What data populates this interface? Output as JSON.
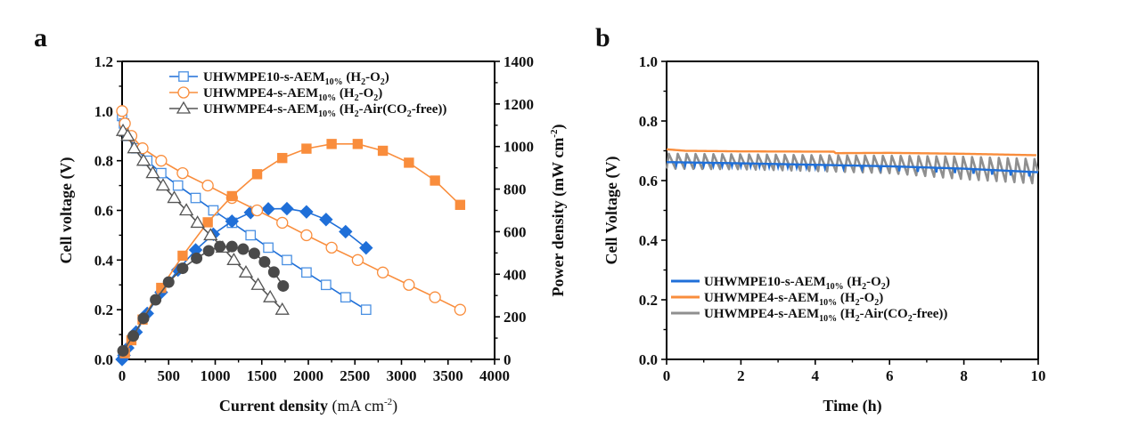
{
  "colors": {
    "blue": "#1f6fd8",
    "blue_open": "#4a90e2",
    "orange": "#f98d3c",
    "gray": "#555555",
    "gray_dark": "#4a4a4a",
    "gray_line": "#8f8f8f",
    "axis": "#000000"
  },
  "chart_data": [
    {
      "panel": "a",
      "type": "line",
      "xlabel": "Current density (mA cm-2)",
      "xlabel_main": "Current density",
      "xlabel_unit": "(mA cm",
      "xlabel_sup": "-2",
      "xlabel_close": ")",
      "ylabel": "Cell voltage (V)",
      "y2label": "Power density (mW cm-2)",
      "y2label_main": "Power density (mW cm",
      "y2label_sup": "-2",
      "y2label_close": ")",
      "xlim": [
        0,
        4000
      ],
      "ylim": [
        0.0,
        1.2
      ],
      "y2lim": [
        0,
        1400
      ],
      "xticks": [
        0,
        500,
        1000,
        1500,
        2000,
        2500,
        3000,
        3500,
        4000
      ],
      "yticks": [
        "0.0",
        "0.2",
        "0.4",
        "0.6",
        "0.8",
        "1.0",
        "1.2"
      ],
      "y2ticks": [
        0,
        200,
        400,
        600,
        800,
        1000,
        1200,
        1400
      ],
      "legend_position": "top-left",
      "legend": [
        {
          "main": "UHWMPE10-s-AEM",
          "sub": "10%",
          "tail": " (H",
          "tail_sub": "2",
          "tail2": "-O",
          "tail2_sub": "2",
          "tail3": ")",
          "marker": "open-square",
          "color_key": "blue_open"
        },
        {
          "main": "UHWMPE4-s-AEM",
          "sub": "10%",
          "tail": " (H",
          "tail_sub": "2",
          "tail2": "-O",
          "tail2_sub": "2",
          "tail3": ")",
          "marker": "open-circle",
          "color_key": "orange"
        },
        {
          "main": "UHWMPE4-s-AEM",
          "sub": "10%",
          "tail": " (H",
          "tail_sub": "2",
          "tail2": "-Air(CO",
          "tail2_sub": "2",
          "tail3": "-free))",
          "marker": "open-triangle",
          "color_key": "gray"
        }
      ],
      "series": [
        {
          "name": "UHWMPE10-s-AEM10% (H2-O2) voltage",
          "axis": "left",
          "marker": "open-square",
          "color_key": "blue_open",
          "line_color_key": "blue",
          "x": [
            0,
            20,
            60,
            150,
            270,
            420,
            600,
            790,
            980,
            1180,
            1380,
            1570,
            1770,
            1980,
            2190,
            2400,
            2620
          ],
          "y": [
            0.98,
            0.95,
            0.9,
            0.85,
            0.8,
            0.75,
            0.7,
            0.65,
            0.6,
            0.55,
            0.5,
            0.45,
            0.4,
            0.35,
            0.3,
            0.25,
            0.2
          ]
        },
        {
          "name": "UHWMPE10-s-AEM10% (H2-O2) power",
          "axis": "right",
          "marker": "filled-diamond",
          "color_key": "blue",
          "line_color_key": "blue",
          "x": [
            0,
            20,
            60,
            150,
            270,
            420,
            600,
            790,
            980,
            1180,
            1380,
            1570,
            1770,
            1980,
            2190,
            2400,
            2620
          ],
          "y": [
            0,
            19,
            54,
            128,
            216,
            315,
            420,
            514,
            588,
            649,
            690,
            707,
            708,
            693,
            657,
            600,
            524
          ]
        },
        {
          "name": "UHWMPE4-s-AEM10% (H2-O2) voltage",
          "axis": "left",
          "marker": "open-circle",
          "color_key": "orange",
          "line_color_key": "orange",
          "x": [
            0,
            30,
            100,
            220,
            420,
            650,
            920,
            1180,
            1450,
            1720,
            1980,
            2250,
            2530,
            2800,
            3080,
            3360,
            3630
          ],
          "y": [
            1.0,
            0.95,
            0.9,
            0.85,
            0.8,
            0.75,
            0.7,
            0.65,
            0.6,
            0.55,
            0.5,
            0.45,
            0.4,
            0.35,
            0.3,
            0.25,
            0.2
          ]
        },
        {
          "name": "UHWMPE4-s-AEM10% (H2-O2) power",
          "axis": "right",
          "marker": "filled-square",
          "color_key": "orange",
          "line_color_key": "orange",
          "x": [
            30,
            100,
            220,
            420,
            650,
            920,
            1180,
            1450,
            1720,
            1980,
            2250,
            2530,
            2800,
            3080,
            3360,
            3630
          ],
          "y": [
            29,
            90,
            187,
            336,
            487,
            644,
            767,
            870,
            946,
            990,
            1012,
            1012,
            980,
            924,
            840,
            726
          ]
        },
        {
          "name": "UHWMPE4-s-AEM10% (H2-Air(CO2-free)) voltage",
          "axis": "left",
          "marker": "open-triangle",
          "color_key": "gray",
          "line_color_key": "gray",
          "x": [
            10,
            60,
            130,
            230,
            330,
            440,
            560,
            690,
            810,
            950,
            1080,
            1200,
            1330,
            1460,
            1590,
            1720
          ],
          "y": [
            0.92,
            0.9,
            0.85,
            0.8,
            0.75,
            0.7,
            0.65,
            0.6,
            0.55,
            0.5,
            0.45,
            0.4,
            0.35,
            0.3,
            0.25,
            0.2
          ]
        },
        {
          "name": "UHWMPE4-s-AEM10% (H2-Air(CO2-free)) power",
          "axis": "right",
          "marker": "filled-circle",
          "color_key": "gray_dark",
          "line_color_key": "gray",
          "x": [
            10,
            120,
            230,
            360,
            500,
            650,
            800,
            930,
            1050,
            1180,
            1300,
            1420,
            1530,
            1630,
            1730
          ],
          "y": [
            40,
            110,
            193,
            280,
            363,
            428,
            475,
            510,
            530,
            530,
            518,
            498,
            458,
            410,
            345
          ]
        }
      ]
    },
    {
      "panel": "b",
      "type": "line",
      "xlabel": "Time (h)",
      "ylabel": "Cell Voltage (V)",
      "xlim": [
        0,
        10
      ],
      "ylim": [
        0.0,
        1.0
      ],
      "xticks": [
        0,
        2,
        4,
        6,
        8,
        10
      ],
      "yticks": [
        "0.0",
        "0.2",
        "0.4",
        "0.6",
        "0.8",
        "1.0"
      ],
      "legend_position": "lower-left",
      "legend": [
        {
          "main": "UHWMPE10-s-AEM",
          "sub": "10%",
          "tail": " (H",
          "tail_sub": "2",
          "tail2": "-O",
          "tail2_sub": "2",
          "tail3": ")",
          "color_key": "blue"
        },
        {
          "main": "UHWMPE4-s-AEM",
          "sub": "10%",
          "tail": " (H",
          "tail_sub": "2",
          "tail2": "-O",
          "tail2_sub": "2",
          "tail3": ")",
          "color_key": "orange"
        },
        {
          "main": "UHWMPE4-s-AEM",
          "sub": "10%",
          "tail": " (H",
          "tail_sub": "2",
          "tail2": "-Air(CO",
          "tail2_sub": "2",
          "tail3": "-free))",
          "color_key": "gray_line"
        }
      ],
      "series": [
        {
          "name": "UHWMPE10-s-AEM10% (H2-O2)",
          "color_key": "blue",
          "style": "steady",
          "x": [
            0,
            2,
            4,
            6,
            8,
            10
          ],
          "y": [
            0.662,
            0.658,
            0.653,
            0.648,
            0.64,
            0.628
          ],
          "dip_period_h": 0.25,
          "dip_depth": 0.012
        },
        {
          "name": "UHWMPE4-s-AEM10% (H2-O2)",
          "color_key": "orange",
          "style": "steady",
          "x": [
            0,
            0.5,
            2,
            4.5,
            4.55,
            6,
            8,
            10
          ],
          "y": [
            0.705,
            0.7,
            0.698,
            0.697,
            0.692,
            0.693,
            0.69,
            0.685
          ]
        },
        {
          "name": "UHWMPE4-s-AEM10% (H2-Air(CO2-free))",
          "color_key": "gray_line",
          "style": "oscillating",
          "x": [
            0,
            2,
            4,
            6,
            8,
            10
          ],
          "y_high": [
            0.69,
            0.688,
            0.685,
            0.683,
            0.68,
            0.672
          ],
          "y_low": [
            0.64,
            0.638,
            0.632,
            0.625,
            0.605,
            0.59
          ],
          "period_h": 0.24
        }
      ]
    }
  ],
  "panels": {
    "a_label": "a",
    "b_label": "b"
  }
}
